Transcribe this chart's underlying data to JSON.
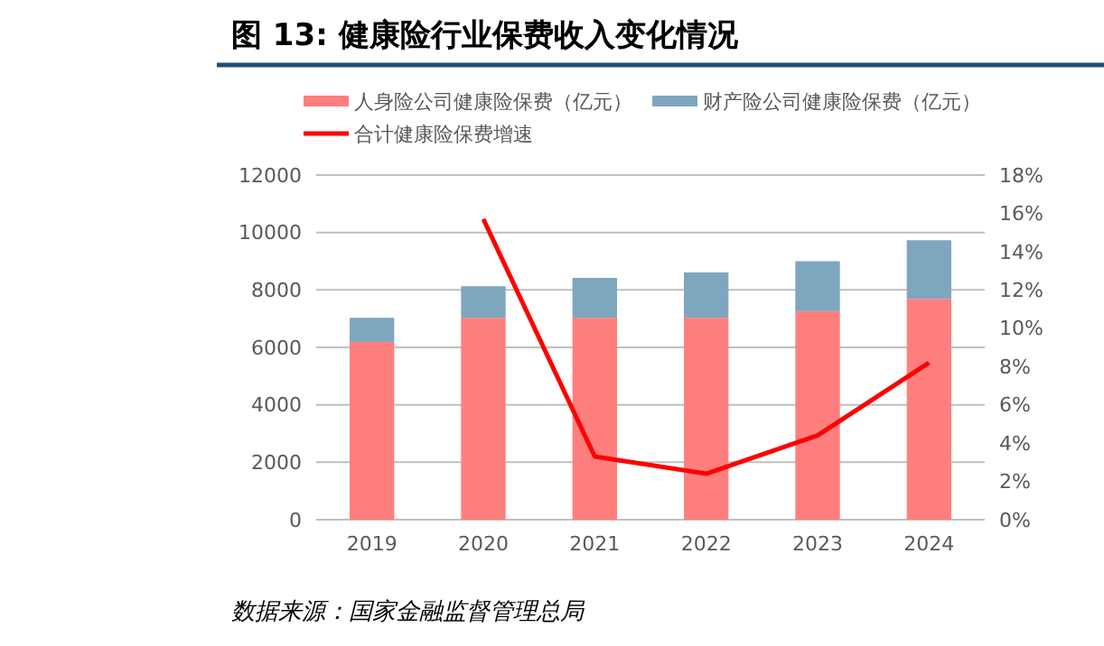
{
  "chart_data": {
    "type": "bar",
    "title": "图 13: 健康险行业保费收入变化情况",
    "categories": [
      "2019",
      "2020",
      "2021",
      "2022",
      "2023",
      "2024"
    ],
    "stacked": true,
    "series": [
      {
        "name": "人身险公司健康险保费（亿元）",
        "color": "#ff7f7f",
        "values": [
          6190,
          7030,
          7030,
          7030,
          7260,
          7690
        ]
      },
      {
        "name": "财产险公司健康险保费（亿元）",
        "color": "#7fa6bf",
        "values": [
          840,
          1100,
          1390,
          1580,
          1740,
          2040
        ]
      },
      {
        "name": "合计健康险保费增速",
        "type": "line",
        "axis": "y2",
        "color": "#ff0000",
        "values": [
          null,
          15.7,
          3.3,
          2.4,
          4.4,
          8.2
        ]
      }
    ],
    "ylim": [
      0,
      12000
    ],
    "yticks": [
      0,
      2000,
      4000,
      6000,
      8000,
      10000,
      12000
    ],
    "y2lim": [
      0,
      18
    ],
    "y2ticks": [
      {
        "value": 0,
        "label": "0%"
      },
      {
        "value": 2,
        "label": "2%"
      },
      {
        "value": 4,
        "label": "4%"
      },
      {
        "value": 6,
        "label": "6%"
      },
      {
        "value": 8,
        "label": "8%"
      },
      {
        "value": 10,
        "label": "10%"
      },
      {
        "value": 12,
        "label": "12%"
      },
      {
        "value": 14,
        "label": "14%"
      },
      {
        "value": 16,
        "label": "16%"
      },
      {
        "value": 18,
        "label": "18%"
      }
    ],
    "grid": "y",
    "legend": "top",
    "marker": "none",
    "annotations": [
      "数据来源：国家金融监督管理总局"
    ]
  }
}
